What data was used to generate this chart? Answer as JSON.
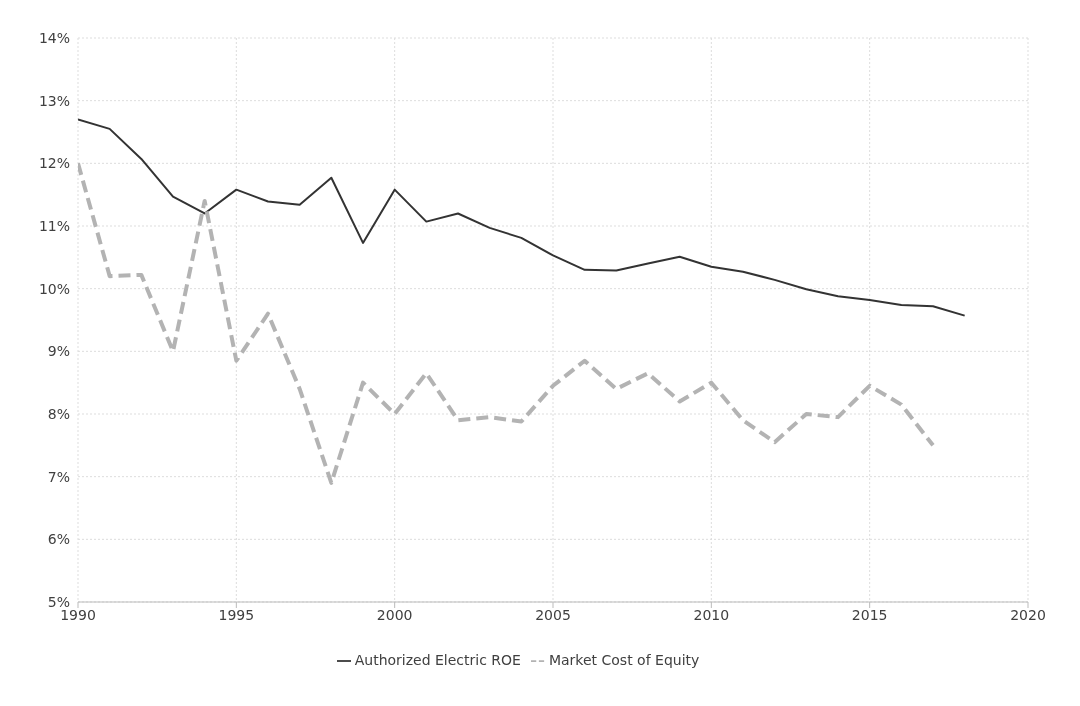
{
  "chart_data": {
    "type": "line",
    "x": [
      1990,
      1991,
      1992,
      1993,
      1994,
      1995,
      1996,
      1997,
      1998,
      1999,
      2000,
      2001,
      2002,
      2003,
      2004,
      2005,
      2006,
      2007,
      2008,
      2009,
      2010,
      2011,
      2012,
      2013,
      2014,
      2015,
      2016,
      2017,
      2018
    ],
    "series": [
      {
        "name": "Authorized Electric ROE",
        "color": "#333333",
        "line_style": "solid",
        "values": [
          12.7,
          12.55,
          12.07,
          11.47,
          11.2,
          11.58,
          11.39,
          11.34,
          11.77,
          10.73,
          11.58,
          11.07,
          11.2,
          10.97,
          10.81,
          10.53,
          10.3,
          10.29,
          10.4,
          10.51,
          10.35,
          10.27,
          10.14,
          9.99,
          9.88,
          9.82,
          9.74,
          9.72,
          9.57
        ]
      },
      {
        "name": "Market Cost of Equity",
        "color": "#b3b3b3",
        "line_style": "dashed",
        "values": [
          12.0,
          10.2,
          10.22,
          9.0,
          11.4,
          8.85,
          9.6,
          8.4,
          6.9,
          8.5,
          8.0,
          8.65,
          7.9,
          7.95,
          7.88,
          8.45,
          8.85,
          8.4,
          8.65,
          8.2,
          8.5,
          7.9,
          7.55,
          8.0,
          7.95,
          8.45,
          8.15,
          7.5,
          null
        ]
      }
    ],
    "xlim": [
      1990,
      2020
    ],
    "xticks": [
      1990,
      1995,
      2000,
      2005,
      2010,
      2015,
      2020
    ],
    "ylim": [
      5,
      14
    ],
    "yticks": [
      {
        "value": 5,
        "label": "5%"
      },
      {
        "value": 6,
        "label": "6%"
      },
      {
        "value": 7,
        "label": "7%"
      },
      {
        "value": 8,
        "label": "8%"
      },
      {
        "value": 9,
        "label": "9%"
      },
      {
        "value": 10,
        "label": "10%"
      },
      {
        "value": 11,
        "label": "11%"
      },
      {
        "value": 12,
        "label": "12%"
      },
      {
        "value": 13,
        "label": "13%"
      },
      {
        "value": 14,
        "label": "14%"
      }
    ],
    "grid": true,
    "legend": "bottom",
    "marker": "none"
  }
}
